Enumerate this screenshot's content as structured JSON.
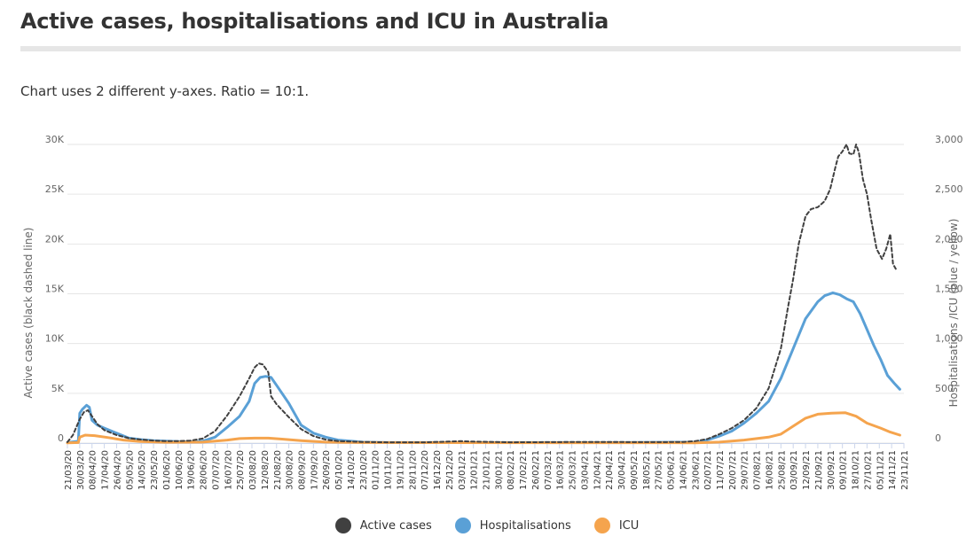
{
  "title": "Active cases, hospitalisations and ICU in Australia",
  "subtitle": "Chart uses 2 different y-axes. Ratio = 10:1.",
  "chart_data": {
    "type": "line",
    "left_axis": {
      "label": "Active cases (black dashed line)",
      "ylim": [
        0,
        30000
      ],
      "ticks": [
        0,
        5000,
        10000,
        15000,
        20000,
        25000,
        30000
      ],
      "tick_labels": [
        "0",
        "5K",
        "10K",
        "15K",
        "20K",
        "25K",
        "30K"
      ]
    },
    "right_axis": {
      "label": "Hospitalisations /ICU (blue / yellow)",
      "ylim": [
        0,
        3000
      ],
      "ticks": [
        0,
        500,
        1000,
        1500,
        2000,
        2500,
        3000
      ],
      "tick_labels": [
        "0",
        "500",
        "1,000",
        "1,500",
        "2,000",
        "2,500",
        "3,000"
      ]
    },
    "x_tick_labels": [
      "21/03/20",
      "30/03/20",
      "08/04/20",
      "17/04/20",
      "26/04/20",
      "05/05/20",
      "14/05/20",
      "23/05/20",
      "01/06/20",
      "10/06/20",
      "19/06/20",
      "28/06/20",
      "07/07/20",
      "16/07/20",
      "25/07/20",
      "03/08/20",
      "12/08/20",
      "21/08/20",
      "30/08/20",
      "08/09/20",
      "17/09/20",
      "26/09/20",
      "05/10/20",
      "14/10/20",
      "23/10/20",
      "01/11/20",
      "10/11/20",
      "19/11/20",
      "28/11/20",
      "07/12/20",
      "16/12/20",
      "25/12/20",
      "03/01/21",
      "12/01/21",
      "21/01/21",
      "30/01/21",
      "08/02/21",
      "17/02/21",
      "26/02/21",
      "07/03/21",
      "16/03/21",
      "25/03/21",
      "03/04/21",
      "12/04/21",
      "21/04/21",
      "30/04/21",
      "09/05/21",
      "18/05/21",
      "27/05/21",
      "05/06/21",
      "14/06/21",
      "23/06/21",
      "02/07/21",
      "11/07/21",
      "20/07/21",
      "29/07/21",
      "07/08/21",
      "16/08/21",
      "25/08/21",
      "03/09/21",
      "12/09/21",
      "21/09/21",
      "30/09/21",
      "09/10/21",
      "18/10/21",
      "27/10/21",
      "05/11/21",
      "14/11/21",
      "23/11/21"
    ],
    "x_start": "2020-03-21",
    "x_end": "2021-11-23",
    "grid": true,
    "legend_position": "bottom",
    "series": [
      {
        "name": "Active cases",
        "axis": "left",
        "color": "#404040",
        "style": "dashed",
        "points": [
          [
            "2020-03-21",
            100
          ],
          [
            "2020-03-25",
            800
          ],
          [
            "2020-03-30",
            2400
          ],
          [
            "2020-04-02",
            3100
          ],
          [
            "2020-04-05",
            3300
          ],
          [
            "2020-04-08",
            2700
          ],
          [
            "2020-04-12",
            1900
          ],
          [
            "2020-04-17",
            1300
          ],
          [
            "2020-04-26",
            800
          ],
          [
            "2020-05-05",
            500
          ],
          [
            "2020-05-14",
            350
          ],
          [
            "2020-05-23",
            250
          ],
          [
            "2020-06-01",
            200
          ],
          [
            "2020-06-10",
            200
          ],
          [
            "2020-06-19",
            250
          ],
          [
            "2020-06-28",
            450
          ],
          [
            "2020-07-07",
            1200
          ],
          [
            "2020-07-16",
            2800
          ],
          [
            "2020-07-25",
            4700
          ],
          [
            "2020-08-01",
            6500
          ],
          [
            "2020-08-05",
            7600
          ],
          [
            "2020-08-08",
            8000
          ],
          [
            "2020-08-11",
            7900
          ],
          [
            "2020-08-15",
            7100
          ],
          [
            "2020-08-17",
            4700
          ],
          [
            "2020-08-21",
            3900
          ],
          [
            "2020-08-30",
            2600
          ],
          [
            "2020-09-08",
            1400
          ],
          [
            "2020-09-17",
            700
          ],
          [
            "2020-09-26",
            350
          ],
          [
            "2020-10-05",
            200
          ],
          [
            "2020-10-23",
            120
          ],
          [
            "2020-11-10",
            80
          ],
          [
            "2020-12-07",
            80
          ],
          [
            "2020-12-25",
            150
          ],
          [
            "2021-01-03",
            200
          ],
          [
            "2021-01-12",
            150
          ],
          [
            "2021-02-08",
            80
          ],
          [
            "2021-03-07",
            100
          ],
          [
            "2021-04-03",
            120
          ],
          [
            "2021-04-30",
            110
          ],
          [
            "2021-05-27",
            100
          ],
          [
            "2021-06-14",
            120
          ],
          [
            "2021-06-23",
            200
          ],
          [
            "2021-07-02",
            400
          ],
          [
            "2021-07-11",
            900
          ],
          [
            "2021-07-20",
            1500
          ],
          [
            "2021-07-29",
            2300
          ],
          [
            "2021-08-07",
            3500
          ],
          [
            "2021-08-16",
            5500
          ],
          [
            "2021-08-25",
            9500
          ],
          [
            "2021-08-30",
            13500
          ],
          [
            "2021-09-03",
            16500
          ],
          [
            "2021-09-07",
            20000
          ],
          [
            "2021-09-12",
            22800
          ],
          [
            "2021-09-16",
            23500
          ],
          [
            "2021-09-21",
            23700
          ],
          [
            "2021-09-26",
            24300
          ],
          [
            "2021-09-30",
            25500
          ],
          [
            "2021-10-04",
            27800
          ],
          [
            "2021-10-06",
            28800
          ],
          [
            "2021-10-09",
            29300
          ],
          [
            "2021-10-12",
            30000
          ],
          [
            "2021-10-14",
            29100
          ],
          [
            "2021-10-17",
            29000
          ],
          [
            "2021-10-19",
            30000
          ],
          [
            "2021-10-21",
            29200
          ],
          [
            "2021-10-24",
            26500
          ],
          [
            "2021-10-27",
            25000
          ],
          [
            "2021-10-30",
            22500
          ],
          [
            "2021-11-03",
            19500
          ],
          [
            "2021-11-07",
            18500
          ],
          [
            "2021-11-10",
            19500
          ],
          [
            "2021-11-13",
            21000
          ],
          [
            "2021-11-15",
            18000
          ],
          [
            "2021-11-17",
            17500
          ]
        ]
      },
      {
        "name": "Hospitalisations",
        "axis": "right",
        "color": "#5aa0d6",
        "style": "solid",
        "points": [
          [
            "2020-03-21",
            5
          ],
          [
            "2020-03-27",
            15
          ],
          [
            "2020-03-29",
            20
          ],
          [
            "2020-03-30",
            300
          ],
          [
            "2020-04-01",
            340
          ],
          [
            "2020-04-04",
            380
          ],
          [
            "2020-04-06",
            360
          ],
          [
            "2020-04-08",
            230
          ],
          [
            "2020-04-12",
            180
          ],
          [
            "2020-04-17",
            150
          ],
          [
            "2020-04-26",
            100
          ],
          [
            "2020-05-05",
            50
          ],
          [
            "2020-05-14",
            35
          ],
          [
            "2020-05-23",
            25
          ],
          [
            "2020-06-01",
            20
          ],
          [
            "2020-06-10",
            15
          ],
          [
            "2020-06-19",
            12
          ],
          [
            "2020-06-28",
            20
          ],
          [
            "2020-07-07",
            60
          ],
          [
            "2020-07-16",
            160
          ],
          [
            "2020-07-25",
            270
          ],
          [
            "2020-08-01",
            420
          ],
          [
            "2020-08-05",
            600
          ],
          [
            "2020-08-09",
            660
          ],
          [
            "2020-08-13",
            670
          ],
          [
            "2020-08-17",
            660
          ],
          [
            "2020-08-21",
            580
          ],
          [
            "2020-08-30",
            400
          ],
          [
            "2020-09-08",
            180
          ],
          [
            "2020-09-17",
            100
          ],
          [
            "2020-09-26",
            60
          ],
          [
            "2020-10-05",
            30
          ],
          [
            "2020-10-23",
            10
          ],
          [
            "2020-11-10",
            5
          ],
          [
            "2021-01-03",
            5
          ],
          [
            "2021-04-30",
            5
          ],
          [
            "2021-06-23",
            10
          ],
          [
            "2021-07-02",
            30
          ],
          [
            "2021-07-11",
            70
          ],
          [
            "2021-07-20",
            120
          ],
          [
            "2021-07-29",
            200
          ],
          [
            "2021-08-07",
            300
          ],
          [
            "2021-08-16",
            420
          ],
          [
            "2021-08-25",
            650
          ],
          [
            "2021-09-03",
            950
          ],
          [
            "2021-09-12",
            1250
          ],
          [
            "2021-09-21",
            1420
          ],
          [
            "2021-09-26",
            1480
          ],
          [
            "2021-10-02",
            1510
          ],
          [
            "2021-10-07",
            1490
          ],
          [
            "2021-10-12",
            1450
          ],
          [
            "2021-10-17",
            1420
          ],
          [
            "2021-10-22",
            1300
          ],
          [
            "2021-10-27",
            1140
          ],
          [
            "2021-11-01",
            980
          ],
          [
            "2021-11-06",
            840
          ],
          [
            "2021-11-11",
            680
          ],
          [
            "2021-11-16",
            600
          ],
          [
            "2021-11-20",
            540
          ]
        ]
      },
      {
        "name": "ICU",
        "axis": "right",
        "color": "#f5a44d",
        "style": "solid",
        "points": [
          [
            "2020-03-21",
            2
          ],
          [
            "2020-03-29",
            5
          ],
          [
            "2020-03-30",
            60
          ],
          [
            "2020-04-03",
            80
          ],
          [
            "2020-04-10",
            75
          ],
          [
            "2020-04-20",
            55
          ],
          [
            "2020-05-01",
            30
          ],
          [
            "2020-05-14",
            15
          ],
          [
            "2020-06-01",
            8
          ],
          [
            "2020-06-28",
            10
          ],
          [
            "2020-07-16",
            30
          ],
          [
            "2020-07-25",
            45
          ],
          [
            "2020-08-05",
            50
          ],
          [
            "2020-08-15",
            50
          ],
          [
            "2020-08-25",
            40
          ],
          [
            "2020-09-08",
            25
          ],
          [
            "2020-09-26",
            10
          ],
          [
            "2020-10-23",
            5
          ],
          [
            "2021-06-23",
            3
          ],
          [
            "2021-07-11",
            10
          ],
          [
            "2021-07-29",
            30
          ],
          [
            "2021-08-16",
            60
          ],
          [
            "2021-08-25",
            90
          ],
          [
            "2021-09-03",
            170
          ],
          [
            "2021-09-12",
            250
          ],
          [
            "2021-09-21",
            290
          ],
          [
            "2021-10-01",
            300
          ],
          [
            "2021-10-11",
            305
          ],
          [
            "2021-10-19",
            270
          ],
          [
            "2021-10-27",
            200
          ],
          [
            "2021-11-06",
            150
          ],
          [
            "2021-11-13",
            110
          ],
          [
            "2021-11-20",
            80
          ]
        ]
      }
    ]
  }
}
